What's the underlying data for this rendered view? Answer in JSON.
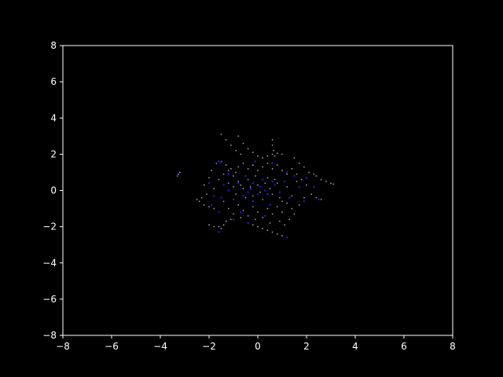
{
  "colors": {
    "background": "#000000",
    "axes": "#ffffff",
    "tick_labels": "#ffffff",
    "trail_points": "#a0a0a0",
    "head_points": "#1f1fe0"
  },
  "chart_data": {
    "type": "scatter",
    "title": "",
    "xlabel": "",
    "ylabel": "",
    "xlim": [
      -8,
      8
    ],
    "ylim": [
      -8,
      8
    ],
    "grid": false,
    "legend": "none",
    "x_ticks": [
      "−8",
      "−6",
      "−4",
      "−2",
      "0",
      "2",
      "4",
      "6",
      "8"
    ],
    "y_ticks": [
      "8",
      "6",
      "4",
      "2",
      "0",
      "−2",
      "−4",
      "−6",
      "−8"
    ],
    "x_tick_values": [
      -8,
      -6,
      -4,
      -2,
      0,
      2,
      4,
      6,
      8
    ],
    "y_tick_values": [
      8,
      6,
      4,
      2,
      0,
      -2,
      -4,
      -6,
      -8
    ],
    "series": [
      {
        "color": "#a0a0a0",
        "points": [
          [
            -3.3,
            0.8
          ],
          [
            -3.25,
            0.9
          ],
          [
            -3.2,
            1.0
          ],
          [
            -2.5,
            -0.5
          ],
          [
            -2.4,
            -0.6
          ],
          [
            -2.2,
            -0.8
          ],
          [
            -2.0,
            -0.9
          ],
          [
            -1.8,
            -1.0
          ],
          [
            -1.7,
            1.5
          ],
          [
            -1.5,
            1.6
          ],
          [
            -1.3,
            1.4
          ],
          [
            -1.1,
            1.2
          ],
          [
            -0.9,
            1.0
          ],
          [
            -1.5,
            3.1
          ],
          [
            -1.3,
            2.8
          ],
          [
            -1.1,
            2.5
          ],
          [
            -0.9,
            2.2
          ],
          [
            -0.7,
            2.0
          ],
          [
            -0.8,
            3.0
          ],
          [
            -0.6,
            2.6
          ],
          [
            -0.4,
            2.3
          ],
          [
            -0.2,
            2.1
          ],
          [
            0.0,
            1.9
          ],
          [
            0.6,
            2.8
          ],
          [
            0.6,
            2.5
          ],
          [
            0.65,
            2.2
          ],
          [
            0.7,
            1.9
          ],
          [
            0.2,
            1.8
          ],
          [
            0.4,
            1.9
          ],
          [
            0.6,
            2.0
          ],
          [
            0.8,
            2.05
          ],
          [
            1.0,
            2.0
          ],
          [
            1.5,
            1.8
          ],
          [
            1.7,
            1.5
          ],
          [
            1.9,
            1.3
          ],
          [
            2.1,
            1.0
          ],
          [
            2.3,
            0.9
          ],
          [
            2.4,
            0.8
          ],
          [
            2.6,
            0.6
          ],
          [
            2.8,
            0.5
          ],
          [
            3.0,
            0.4
          ],
          [
            3.1,
            0.35
          ],
          [
            2.2,
            -0.2
          ],
          [
            2.4,
            -0.4
          ],
          [
            2.6,
            -0.5
          ],
          [
            1.2,
            -2.6
          ],
          [
            1.0,
            -2.5
          ],
          [
            0.8,
            -2.4
          ],
          [
            0.6,
            -2.3
          ],
          [
            0.4,
            -2.2
          ],
          [
            0.2,
            -2.1
          ],
          [
            0.0,
            -2.0
          ],
          [
            -0.2,
            -1.9
          ],
          [
            -0.4,
            -1.8
          ],
          [
            -1.6,
            -2.3
          ],
          [
            -1.5,
            -2.1
          ],
          [
            -1.4,
            -1.9
          ],
          [
            -1.3,
            -1.7
          ],
          [
            -2.0,
            -1.9
          ],
          [
            -1.8,
            -2.0
          ],
          [
            -1.6,
            -2.0
          ],
          [
            -1.2,
            0.4
          ],
          [
            -1.0,
            0.2
          ],
          [
            -0.8,
            0.5
          ],
          [
            -0.6,
            0.1
          ],
          [
            -0.4,
            0.6
          ],
          [
            -0.2,
            -0.3
          ],
          [
            0.0,
            0.3
          ],
          [
            0.2,
            -0.5
          ],
          [
            0.4,
            0.7
          ],
          [
            0.6,
            -0.2
          ],
          [
            0.8,
            0.4
          ],
          [
            1.0,
            -0.6
          ],
          [
            1.2,
            0.2
          ],
          [
            1.4,
            -0.3
          ],
          [
            1.6,
            0.5
          ],
          [
            -1.4,
            -0.6
          ],
          [
            -1.2,
            -1.0
          ],
          [
            -1.0,
            -1.3
          ],
          [
            -0.8,
            -0.8
          ],
          [
            -0.6,
            -1.1
          ],
          [
            -0.4,
            -1.4
          ],
          [
            -0.2,
            -0.9
          ],
          [
            0.0,
            -1.2
          ],
          [
            0.2,
            -1.5
          ],
          [
            0.4,
            -1.0
          ],
          [
            0.6,
            -1.3
          ],
          [
            0.8,
            -0.9
          ],
          [
            1.0,
            -1.2
          ],
          [
            1.2,
            -0.7
          ],
          [
            1.4,
            -1.0
          ],
          [
            -1.8,
            0.1
          ],
          [
            -1.6,
            0.6
          ],
          [
            -1.4,
            0.9
          ],
          [
            -1.2,
            1.1
          ],
          [
            -1.0,
            0.8
          ],
          [
            -0.8,
            1.3
          ],
          [
            -0.6,
            1.5
          ],
          [
            -0.4,
            1.2
          ],
          [
            -0.2,
            1.4
          ],
          [
            0.0,
            1.1
          ],
          [
            0.2,
            1.3
          ],
          [
            0.4,
            1.5
          ],
          [
            0.6,
            1.2
          ],
          [
            0.8,
            1.4
          ],
          [
            1.0,
            1.1
          ],
          [
            1.2,
            0.9
          ],
          [
            1.4,
            1.2
          ],
          [
            1.6,
            0.9
          ],
          [
            1.8,
            0.6
          ],
          [
            2.0,
            0.3
          ],
          [
            1.9,
            -0.4
          ],
          [
            1.7,
            -0.8
          ],
          [
            1.5,
            -1.3
          ],
          [
            1.3,
            -1.6
          ],
          [
            1.1,
            -1.9
          ],
          [
            0.9,
            -1.7
          ],
          [
            0.5,
            -1.8
          ],
          [
            -0.1,
            -1.6
          ],
          [
            -0.7,
            -1.5
          ],
          [
            -1.1,
            -1.6
          ],
          [
            -2.1,
            -0.2
          ],
          [
            -2.2,
            0.3
          ],
          [
            -2.0,
            0.7
          ],
          [
            -1.9,
            1.1
          ],
          [
            -2.3,
            -0.4
          ],
          [
            -0.3,
            0.2
          ],
          [
            0.1,
            -0.1
          ],
          [
            0.3,
            0.4
          ],
          [
            -0.5,
            -0.4
          ],
          [
            0.5,
            0.1
          ],
          [
            -0.7,
            0.3
          ],
          [
            0.7,
            0.6
          ],
          [
            -0.1,
            0.8
          ],
          [
            0.9,
            -0.4
          ],
          [
            -0.9,
            -0.2
          ]
        ]
      },
      {
        "color": "#1f1fe0",
        "points": [
          [
            -0.3,
            0.1
          ],
          [
            0.1,
            0.2
          ],
          [
            0.4,
            -0.2
          ],
          [
            -0.6,
            -0.3
          ],
          [
            0.7,
            0.3
          ],
          [
            -0.2,
            -0.6
          ],
          [
            0.2,
            0.6
          ],
          [
            -0.8,
            0.4
          ],
          [
            0.9,
            -0.1
          ],
          [
            -1.0,
            -0.5
          ],
          [
            1.1,
            0.5
          ],
          [
            -0.5,
            0.8
          ],
          [
            0.5,
            -0.8
          ],
          [
            -1.2,
            0.0
          ],
          [
            1.3,
            -0.4
          ],
          [
            -1.5,
            -0.4
          ],
          [
            -1.4,
            0.3
          ],
          [
            1.5,
            0.8
          ],
          [
            1.7,
            0.2
          ],
          [
            -1.8,
            -0.3
          ],
          [
            -1.6,
            1.6
          ],
          [
            -1.5,
            1.55
          ],
          [
            -0.4,
            -1.8
          ],
          [
            -1.0,
            -1.6
          ],
          [
            -0.1,
            1.6
          ],
          [
            0.6,
            1.5
          ],
          [
            -1.2,
            0.9
          ],
          [
            1.2,
            1.0
          ],
          [
            0.3,
            -1.4
          ],
          [
            -0.7,
            -1.2
          ],
          [
            2.0,
            0.7
          ],
          [
            1.9,
            -0.6
          ],
          [
            2.3,
            0.2
          ],
          [
            2.5,
            -0.5
          ],
          [
            -2.0,
            0.4
          ],
          [
            -1.9,
            -0.8
          ],
          [
            -1.6,
            -1.2
          ],
          [
            -3.3,
            0.85
          ],
          [
            1.2,
            -2.6
          ],
          [
            -1.6,
            -2.3
          ],
          [
            0.0,
            -0.2
          ],
          [
            -0.2,
            0.4
          ],
          [
            0.3,
            0.0
          ],
          [
            -0.4,
            -0.1
          ],
          [
            0.6,
            0.5
          ]
        ]
      }
    ]
  }
}
